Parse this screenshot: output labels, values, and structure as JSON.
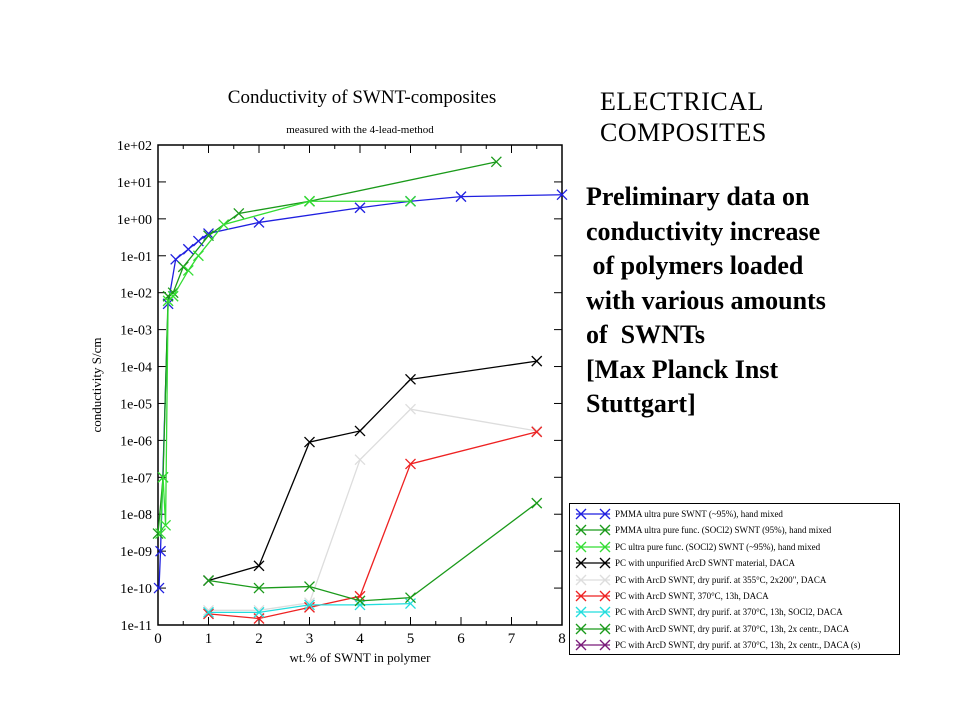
{
  "side_text": {
    "heading": [
      "ELECTRICAL",
      "COMPOSITES"
    ],
    "body": [
      "Preliminary data on",
      "conductivity increase",
      " of polymers loaded",
      "with various amounts",
      "of  SWNTs",
      "[Max Planck Inst",
      "Stuttgart]"
    ]
  },
  "chart_data": {
    "type": "line",
    "title": "Conductivity of SWNT-composites",
    "subtitle": "measured with the 4-lead-method",
    "xlabel": "wt.% of SWNT in polymer",
    "ylabel": "conductivity S/cm",
    "xlim": [
      0,
      8
    ],
    "ylim_exponent": [
      -11,
      2
    ],
    "yscale": "log",
    "x_ticks": [
      "0",
      "1",
      "2",
      "3",
      "4",
      "5",
      "6",
      "7",
      "8"
    ],
    "y_ticks": [
      "1e-11",
      "1e-10",
      "1e-09",
      "1e-08",
      "1e-07",
      "1e-06",
      "1e-05",
      "1e-04",
      "1e-03",
      "1e-02",
      "1e-01",
      "1e+00",
      "1e+01",
      "1e+02"
    ],
    "legend_position": "bottom-right",
    "series": [
      {
        "name": "PMMA ultra pure SWNT (~95%), hand mixed",
        "color": "#1f1fe0",
        "x": [
          0.02,
          0.05,
          0.2,
          0.35,
          0.6,
          0.8,
          1.0,
          2.0,
          4.0,
          5.0,
          6.0,
          8.0
        ],
        "y": [
          1e-10,
          1e-09,
          0.005,
          0.08,
          0.15,
          0.25,
          0.4,
          0.8,
          2.0,
          3.0,
          4.0,
          4.5
        ]
      },
      {
        "name": "PMMA ultra pure func. (SOCl2) SWNT (95%), hand mixed",
        "color": "#1a9a1a",
        "x": [
          0.0,
          0.1,
          0.2,
          0.3,
          0.5,
          1.0,
          1.6,
          3.0,
          6.7
        ],
        "y": [
          3e-09,
          1e-07,
          0.008,
          0.01,
          0.05,
          0.35,
          1.4,
          3.0,
          35
        ]
      },
      {
        "name": "PC ultra pure func. (SOCl2) SWNT (~95%), hand mixed",
        "color": "#33dd33",
        "x": [
          0.05,
          0.1,
          0.15,
          0.2,
          0.3,
          0.6,
          0.8,
          1.3,
          3.0,
          5.0
        ],
        "y": [
          3e-09,
          1e-07,
          5e-09,
          0.006,
          0.008,
          0.04,
          0.1,
          0.7,
          3.0,
          3.0
        ]
      },
      {
        "name": "PC with unpurified ArcD SWNT material, DACA",
        "color": "#000000",
        "x": [
          1.0,
          2.0,
          3.0,
          4.0,
          5.0,
          7.5
        ],
        "y": [
          1.6e-10,
          4e-10,
          9e-07,
          1.8e-06,
          4.5e-05,
          0.00014
        ]
      },
      {
        "name": "PC with ArcD SWNT, dry purif. at 355°C, 2x200\", DACA",
        "color": "#dddddd",
        "x": [
          1.0,
          2.0,
          3.0,
          4.0,
          5.0,
          7.5
        ],
        "y": [
          2.5e-11,
          2.5e-11,
          4e-11,
          3e-07,
          7e-06,
          1.8e-06
        ]
      },
      {
        "name": "PC with ArcD SWNT, 370°C, 13h, DACA",
        "color": "#ee2222",
        "x": [
          1.0,
          2.0,
          3.0,
          4.0,
          5.0,
          7.5
        ],
        "y": [
          2e-11,
          1.5e-11,
          3e-11,
          6e-11,
          2.3e-07,
          1.7e-06
        ]
      },
      {
        "name": "PC with ArcD SWNT, dry purif. at 370°C, 13h, SOCl2, DACA",
        "color": "#22dddd",
        "x": [
          1.0,
          2.0,
          3.0,
          4.0,
          5.0
        ],
        "y": [
          2.2e-11,
          2.2e-11,
          3.5e-11,
          3.5e-11,
          3.8e-11
        ]
      },
      {
        "name": "PC with ArcD SWNT, dry purif. at 370°C, 13h, 2x centr., DACA",
        "color": "#1a9a1a",
        "x": [
          1.0,
          2.0,
          3.0,
          4.0,
          5.0,
          7.5
        ],
        "y": [
          1.6e-10,
          1e-10,
          1.1e-10,
          4.5e-11,
          5.5e-11,
          2e-08
        ]
      },
      {
        "name": "PC with ArcD SWNT, dry purif. at 370°C, 13h, 2x centr., DACA (s)",
        "color": "#7a1a7a",
        "x": [],
        "y": []
      }
    ]
  }
}
